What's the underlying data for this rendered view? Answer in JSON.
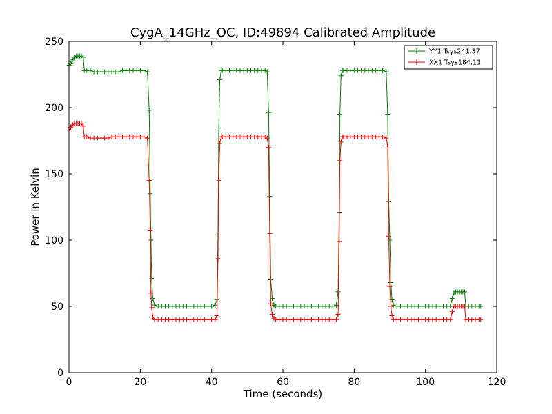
{
  "chart_data": {
    "type": "line",
    "title": "CygA_14GHz_OC, ID:49894 Calibrated Amplitude",
    "xlabel": "Time (seconds)",
    "ylabel": "Power in Kelvin",
    "xlim": [
      0,
      120
    ],
    "ylim": [
      0,
      250
    ],
    "xticks": [
      0,
      20,
      40,
      60,
      80,
      100,
      120
    ],
    "yticks": [
      0,
      50,
      100,
      150,
      200,
      250
    ],
    "grid": false,
    "legend_position": "top-right",
    "marker": "plus",
    "series": [
      {
        "name": "YY1 Tsys241.37",
        "color": "#008000",
        "points": [
          [
            0,
            232
          ],
          [
            0.5,
            233
          ],
          [
            1,
            236
          ],
          [
            1.5,
            238
          ],
          [
            2,
            239
          ],
          [
            2.5,
            239
          ],
          [
            3,
            239
          ],
          [
            3.5,
            239
          ],
          [
            4,
            238
          ],
          [
            4.3,
            228
          ],
          [
            5,
            228
          ],
          [
            6,
            228
          ],
          [
            7,
            227
          ],
          [
            8,
            227
          ],
          [
            9,
            227
          ],
          [
            10,
            227
          ],
          [
            11,
            227
          ],
          [
            12,
            227
          ],
          [
            13,
            227
          ],
          [
            14,
            227
          ],
          [
            15,
            228
          ],
          [
            16,
            228
          ],
          [
            17,
            228
          ],
          [
            18,
            228
          ],
          [
            19,
            228
          ],
          [
            20,
            228
          ],
          [
            21,
            228
          ],
          [
            22,
            227
          ],
          [
            22.5,
            198
          ],
          [
            22.8,
            135
          ],
          [
            23,
            100
          ],
          [
            23.2,
            71
          ],
          [
            23.5,
            56
          ],
          [
            24,
            51
          ],
          [
            25,
            50
          ],
          [
            26,
            50
          ],
          [
            27,
            50
          ],
          [
            28,
            50
          ],
          [
            29,
            50
          ],
          [
            30,
            50
          ],
          [
            31,
            50
          ],
          [
            32,
            50
          ],
          [
            33,
            50
          ],
          [
            34,
            50
          ],
          [
            35,
            50
          ],
          [
            36,
            50
          ],
          [
            37,
            50
          ],
          [
            38,
            50
          ],
          [
            39,
            50
          ],
          [
            40,
            50
          ],
          [
            41,
            51
          ],
          [
            41.5,
            55
          ],
          [
            41.8,
            104
          ],
          [
            42,
            183
          ],
          [
            42.3,
            221
          ],
          [
            42.7,
            228
          ],
          [
            43,
            228
          ],
          [
            44,
            228
          ],
          [
            45,
            228
          ],
          [
            46,
            228
          ],
          [
            47,
            228
          ],
          [
            48,
            228
          ],
          [
            49,
            228
          ],
          [
            50,
            228
          ],
          [
            51,
            228
          ],
          [
            52,
            228
          ],
          [
            53,
            228
          ],
          [
            54,
            228
          ],
          [
            55,
            228
          ],
          [
            55.6,
            227
          ],
          [
            56,
            196
          ],
          [
            56.3,
            133
          ],
          [
            56.6,
            70
          ],
          [
            57,
            56
          ],
          [
            57.5,
            51
          ],
          [
            58,
            50
          ],
          [
            59,
            50
          ],
          [
            60,
            50
          ],
          [
            61,
            50
          ],
          [
            62,
            50
          ],
          [
            63,
            50
          ],
          [
            64,
            50
          ],
          [
            65,
            50
          ],
          [
            66,
            50
          ],
          [
            67,
            50
          ],
          [
            68,
            50
          ],
          [
            69,
            50
          ],
          [
            70,
            50
          ],
          [
            71,
            50
          ],
          [
            72,
            50
          ],
          [
            73,
            50
          ],
          [
            74,
            50
          ],
          [
            75,
            51
          ],
          [
            75.5,
            61
          ],
          [
            75.8,
            121
          ],
          [
            76,
            195
          ],
          [
            76.3,
            224
          ],
          [
            76.7,
            228
          ],
          [
            77,
            228
          ],
          [
            78,
            228
          ],
          [
            79,
            228
          ],
          [
            80,
            228
          ],
          [
            81,
            228
          ],
          [
            82,
            228
          ],
          [
            83,
            228
          ],
          [
            84,
            228
          ],
          [
            85,
            228
          ],
          [
            86,
            228
          ],
          [
            87,
            228
          ],
          [
            88,
            228
          ],
          [
            89,
            227
          ],
          [
            89.4,
            195
          ],
          [
            89.7,
            129
          ],
          [
            90,
            100
          ],
          [
            90.3,
            68
          ],
          [
            90.6,
            55
          ],
          [
            91,
            51
          ],
          [
            92,
            50
          ],
          [
            93,
            50
          ],
          [
            94,
            50
          ],
          [
            95,
            50
          ],
          [
            96,
            50
          ],
          [
            97,
            50
          ],
          [
            98,
            50
          ],
          [
            99,
            50
          ],
          [
            100,
            50
          ],
          [
            101,
            50
          ],
          [
            102,
            50
          ],
          [
            103,
            50
          ],
          [
            104,
            50
          ],
          [
            105,
            50
          ],
          [
            106,
            50
          ],
          [
            107,
            50
          ],
          [
            107.5,
            56
          ],
          [
            108,
            60
          ],
          [
            108.5,
            61
          ],
          [
            109,
            61
          ],
          [
            109.5,
            61
          ],
          [
            110,
            61
          ],
          [
            110.5,
            61
          ],
          [
            111,
            61
          ],
          [
            111.3,
            50
          ],
          [
            112,
            50
          ],
          [
            113,
            50
          ],
          [
            114,
            50
          ],
          [
            115,
            50
          ],
          [
            115.5,
            50
          ]
        ]
      },
      {
        "name": "XX1 Tsys184.11",
        "color": "#ff0000",
        "points": [
          [
            0,
            183
          ],
          [
            0.5,
            185
          ],
          [
            1,
            187
          ],
          [
            1.5,
            188
          ],
          [
            2,
            188
          ],
          [
            2.5,
            188
          ],
          [
            3,
            188
          ],
          [
            3.5,
            188
          ],
          [
            4,
            186
          ],
          [
            4.3,
            178
          ],
          [
            5,
            178
          ],
          [
            6,
            177
          ],
          [
            7,
            177
          ],
          [
            8,
            177
          ],
          [
            9,
            177
          ],
          [
            10,
            177
          ],
          [
            11,
            177
          ],
          [
            12,
            178
          ],
          [
            13,
            178
          ],
          [
            14,
            178
          ],
          [
            15,
            178
          ],
          [
            16,
            178
          ],
          [
            17,
            178
          ],
          [
            18,
            178
          ],
          [
            19,
            178
          ],
          [
            20,
            178
          ],
          [
            21,
            178
          ],
          [
            22,
            177
          ],
          [
            22.5,
            145
          ],
          [
            22.8,
            107
          ],
          [
            23,
            60
          ],
          [
            23.2,
            49
          ],
          [
            23.5,
            42
          ],
          [
            24,
            40
          ],
          [
            25,
            40
          ],
          [
            26,
            40
          ],
          [
            27,
            40
          ],
          [
            28,
            40
          ],
          [
            29,
            40
          ],
          [
            30,
            40
          ],
          [
            31,
            40
          ],
          [
            32,
            40
          ],
          [
            33,
            40
          ],
          [
            34,
            40
          ],
          [
            35,
            40
          ],
          [
            36,
            40
          ],
          [
            37,
            40
          ],
          [
            38,
            40
          ],
          [
            39,
            40
          ],
          [
            40,
            40
          ],
          [
            41,
            40
          ],
          [
            41.5,
            43
          ],
          [
            41.8,
            86
          ],
          [
            42,
            145
          ],
          [
            42.3,
            173
          ],
          [
            42.7,
            178
          ],
          [
            43,
            178
          ],
          [
            44,
            178
          ],
          [
            45,
            178
          ],
          [
            46,
            178
          ],
          [
            47,
            178
          ],
          [
            48,
            178
          ],
          [
            49,
            178
          ],
          [
            50,
            178
          ],
          [
            51,
            178
          ],
          [
            52,
            178
          ],
          [
            53,
            178
          ],
          [
            54,
            178
          ],
          [
            55,
            178
          ],
          [
            55.6,
            177
          ],
          [
            56,
            170
          ],
          [
            56.3,
            105
          ],
          [
            56.6,
            52
          ],
          [
            57,
            44
          ],
          [
            57.5,
            41
          ],
          [
            58,
            40
          ],
          [
            59,
            40
          ],
          [
            60,
            40
          ],
          [
            61,
            40
          ],
          [
            62,
            40
          ],
          [
            63,
            40
          ],
          [
            64,
            40
          ],
          [
            65,
            40
          ],
          [
            66,
            40
          ],
          [
            67,
            40
          ],
          [
            68,
            40
          ],
          [
            69,
            40
          ],
          [
            70,
            40
          ],
          [
            71,
            40
          ],
          [
            72,
            40
          ],
          [
            73,
            40
          ],
          [
            74,
            40
          ],
          [
            75,
            40
          ],
          [
            75.5,
            44
          ],
          [
            75.8,
            99
          ],
          [
            76,
            160
          ],
          [
            76.3,
            174
          ],
          [
            76.7,
            178
          ],
          [
            77,
            178
          ],
          [
            78,
            178
          ],
          [
            79,
            178
          ],
          [
            80,
            178
          ],
          [
            81,
            178
          ],
          [
            82,
            178
          ],
          [
            83,
            178
          ],
          [
            84,
            178
          ],
          [
            85,
            178
          ],
          [
            86,
            178
          ],
          [
            87,
            178
          ],
          [
            88,
            178
          ],
          [
            89,
            177
          ],
          [
            89.4,
            171
          ],
          [
            89.7,
            103
          ],
          [
            90,
            65
          ],
          [
            90.3,
            50
          ],
          [
            90.6,
            43
          ],
          [
            91,
            40
          ],
          [
            92,
            40
          ],
          [
            93,
            40
          ],
          [
            94,
            40
          ],
          [
            95,
            40
          ],
          [
            96,
            40
          ],
          [
            97,
            40
          ],
          [
            98,
            40
          ],
          [
            99,
            40
          ],
          [
            100,
            40
          ],
          [
            101,
            40
          ],
          [
            102,
            40
          ],
          [
            103,
            40
          ],
          [
            104,
            40
          ],
          [
            105,
            40
          ],
          [
            106,
            40
          ],
          [
            107,
            40
          ],
          [
            107.5,
            46
          ],
          [
            108,
            50
          ],
          [
            108.5,
            50
          ],
          [
            109,
            50
          ],
          [
            109.5,
            50
          ],
          [
            110,
            50
          ],
          [
            110.5,
            50
          ],
          [
            111,
            50
          ],
          [
            111.3,
            40
          ],
          [
            112,
            40
          ],
          [
            113,
            40
          ],
          [
            114,
            40
          ],
          [
            115,
            40
          ],
          [
            115.5,
            40
          ]
        ]
      }
    ]
  }
}
